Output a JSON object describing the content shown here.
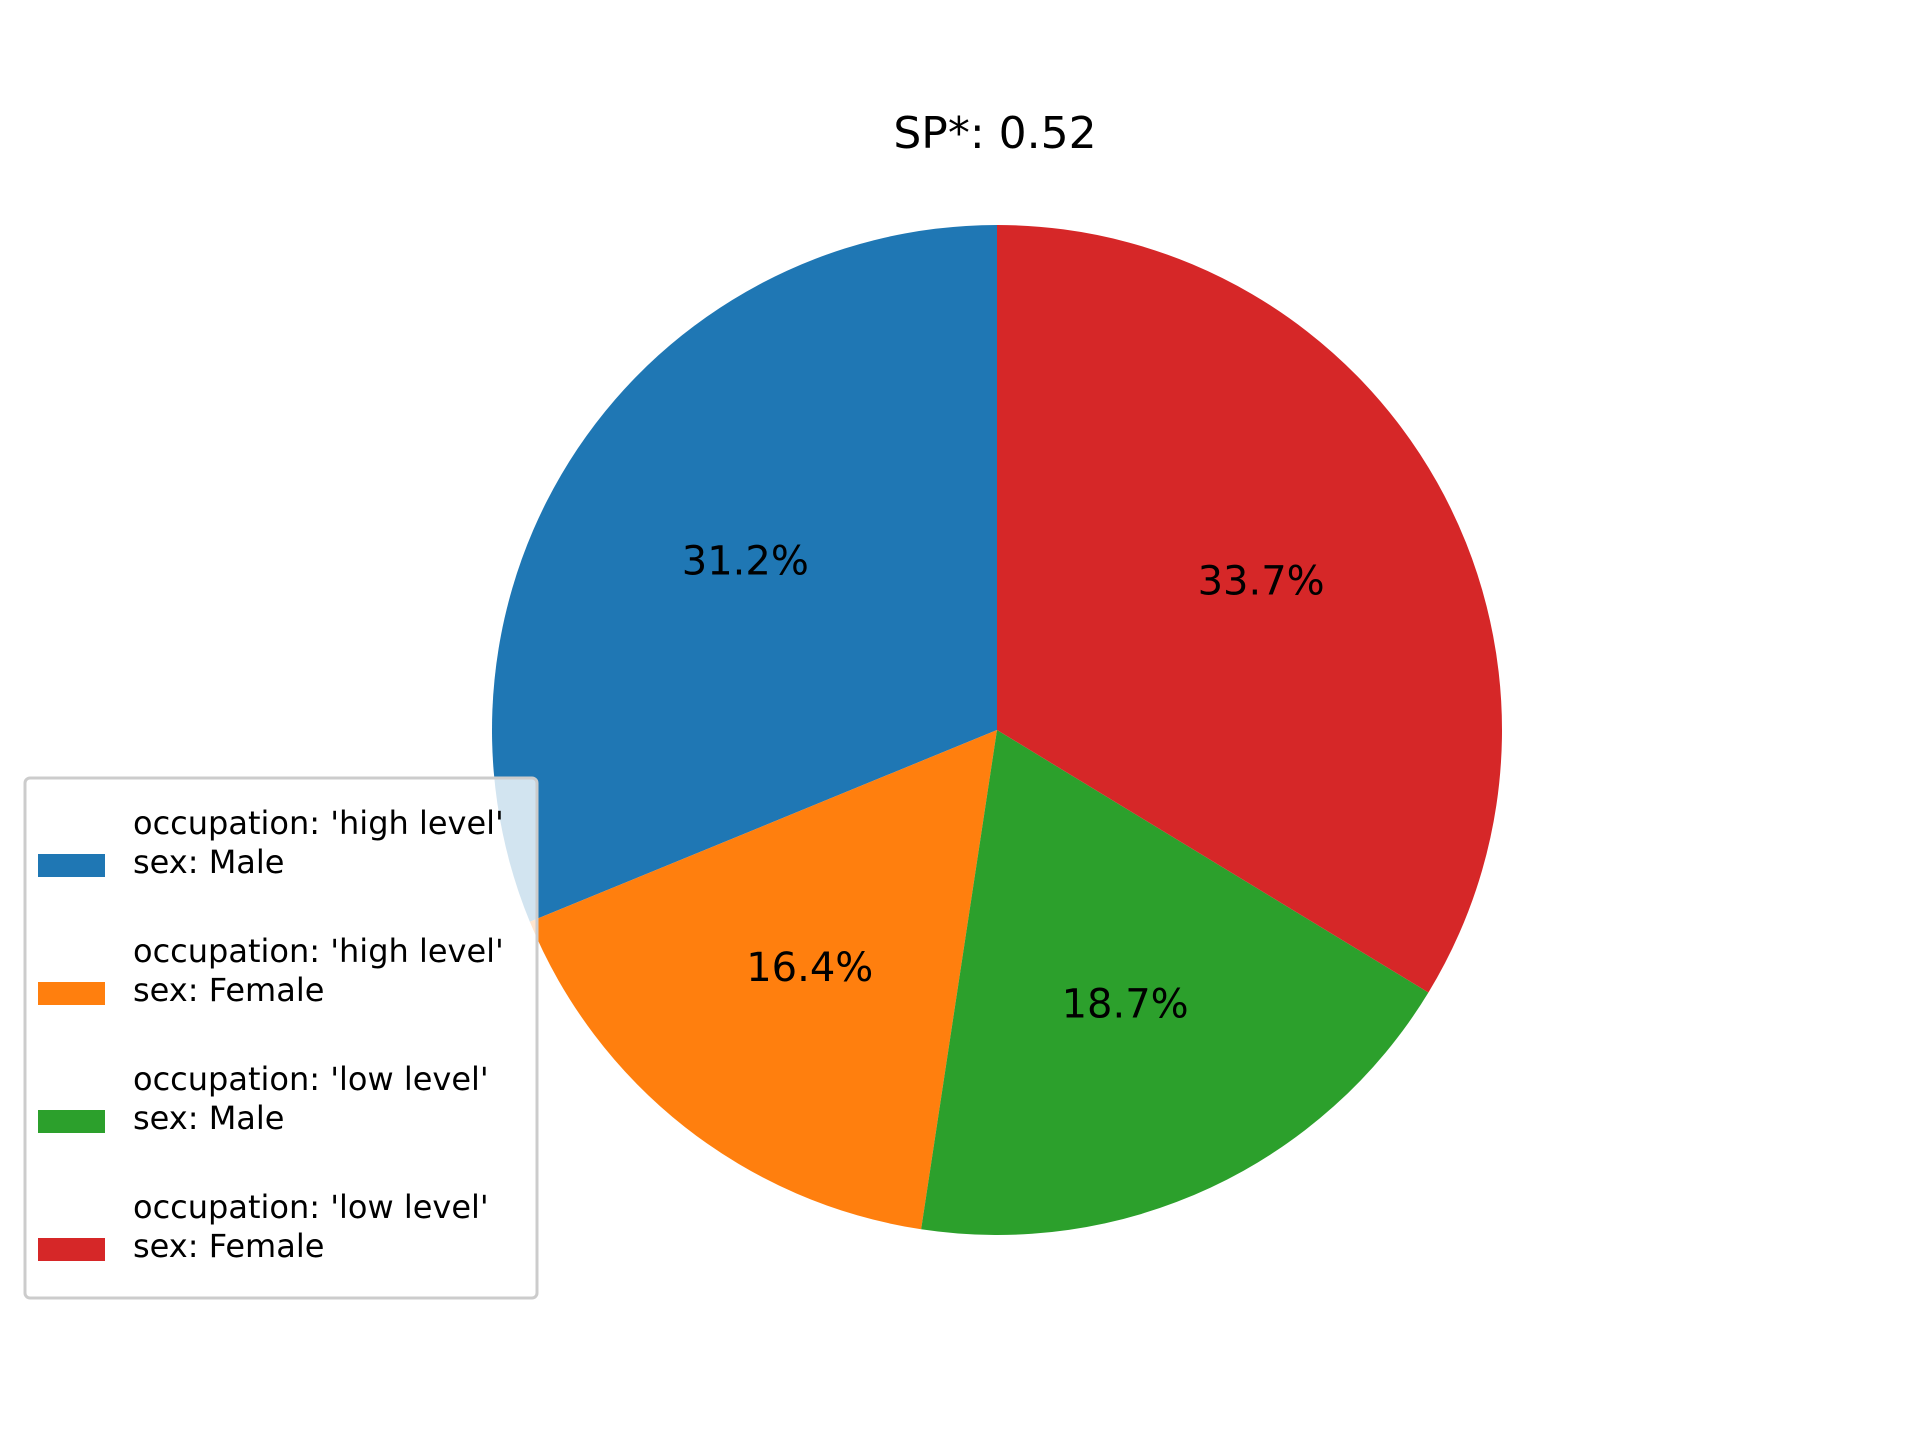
{
  "chart_data": {
    "type": "pie",
    "title": "SP*: 0.52",
    "slices": [
      {
        "label_line1": "occupation: 'high level'",
        "label_line2": "sex: Male",
        "value": 31.2,
        "pct_label": "31.2%",
        "color": "#1f77b4"
      },
      {
        "label_line1": "occupation: 'high level'",
        "label_line2": "sex: Female",
        "value": 16.4,
        "pct_label": "16.4%",
        "color": "#ff7f0e"
      },
      {
        "label_line1": "occupation: 'low level'",
        "label_line2": "sex: Male",
        "value": 18.7,
        "pct_label": "18.7%",
        "color": "#2ca02c"
      },
      {
        "label_line1": "occupation: 'low level'",
        "label_line2": "sex: Female",
        "value": 33.7,
        "pct_label": "33.7%",
        "color": "#d62728"
      }
    ],
    "start_angle_deg": 90,
    "direction": "counterclockwise",
    "legend": {
      "placement": "lower-left"
    }
  }
}
